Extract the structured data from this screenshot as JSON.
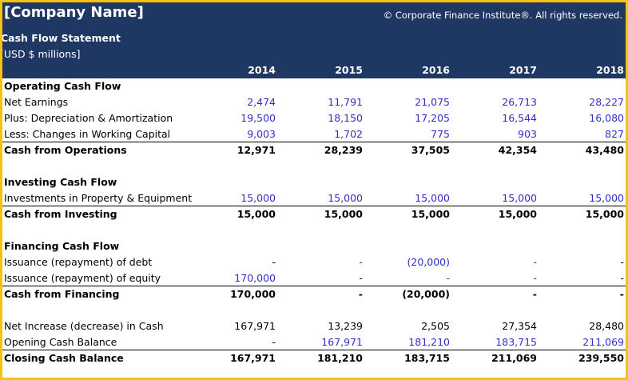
{
  "header": {
    "company": "[Company Name]",
    "copyright": "© Corporate Finance Institute®. All rights reserved.",
    "title": "Cash Flow Statement",
    "units": "[USD $ millions]",
    "years": [
      "2014",
      "2015",
      "2016",
      "2017",
      "2018"
    ]
  },
  "sections": [
    {
      "title": "Operating Cash Flow",
      "rows": [
        {
          "label": "Net Earnings",
          "values": [
            "2,474",
            "11,791",
            "21,075",
            "26,713",
            "28,227"
          ]
        },
        {
          "label": "Plus: Depreciation & Amortization",
          "values": [
            "19,500",
            "18,150",
            "17,205",
            "16,544",
            "16,080"
          ]
        },
        {
          "label": "Less: Changes in Working Capital",
          "values": [
            "9,003",
            "1,702",
            "775",
            "903",
            "827"
          ]
        }
      ],
      "total": {
        "label": "Cash from Operations",
        "values": [
          "12,971",
          "28,239",
          "37,505",
          "42,354",
          "43,480"
        ]
      }
    },
    {
      "title": "Investing Cash Flow",
      "rows": [
        {
          "label": "Investments in Property & Equipment",
          "values": [
            "15,000",
            "15,000",
            "15,000",
            "15,000",
            "15,000"
          ]
        }
      ],
      "total": {
        "label": "Cash from Investing",
        "values": [
          "15,000",
          "15,000",
          "15,000",
          "15,000",
          "15,000"
        ]
      }
    },
    {
      "title": "Financing Cash Flow",
      "rows": [
        {
          "label": "Issuance (repayment) of debt",
          "values": [
            "-",
            "-",
            "(20,000)",
            "-",
            "-"
          ]
        },
        {
          "label": "Issuance (repayment) of equity",
          "values": [
            "170,000",
            "-",
            "-",
            "-",
            "-"
          ]
        }
      ],
      "total": {
        "label": "Cash from Financing",
        "values": [
          "170,000",
          "-",
          "(20,000)",
          "-",
          "-"
        ]
      }
    },
    {
      "rows": [
        {
          "label": "Net Increase (decrease) in Cash",
          "values": [
            "167,971",
            "13,239",
            "2,505",
            "27,354",
            "28,480"
          ]
        },
        {
          "label": "Opening Cash Balance",
          "values": [
            "-",
            "167,971",
            "181,210",
            "183,715",
            "211,069"
          ]
        }
      ],
      "total": {
        "label": "Closing Cash Balance",
        "values": [
          "167,971",
          "181,210",
          "183,715",
          "211,069",
          "239,550"
        ]
      }
    }
  ]
}
